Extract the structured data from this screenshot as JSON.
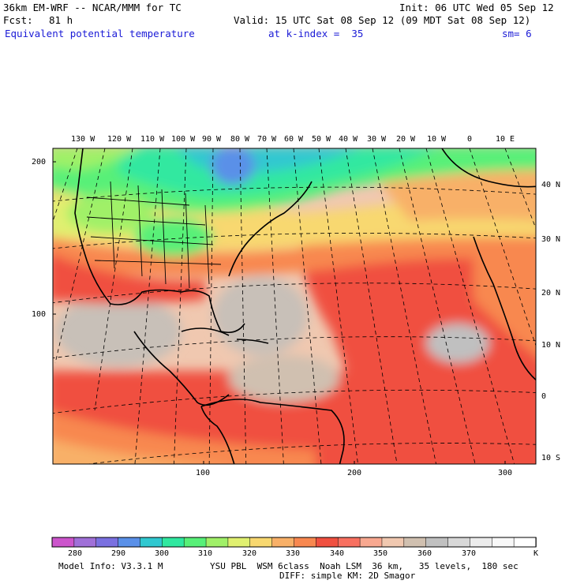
{
  "header": {
    "model": "36km EM-WRF -- NCAR/MMM for TC",
    "init": "Init: 06 UTC Wed 05 Sep 12",
    "fcst_label": "Fcst:",
    "fcst_hours": "81 h",
    "valid": "Valid: 15 UTC Sat 08 Sep 12 (09 MDT Sat 08 Sep 12)",
    "field": "Equivalent potential temperature",
    "level": "at k-index =  35",
    "smoothing": "sm= 6"
  },
  "map": {
    "top_lon_labels": [
      "130 W",
      "120 W",
      "110 W",
      "100 W",
      "90 W",
      "80 W",
      "70 W",
      "60 W",
      "50 W",
      "40 W",
      "30 W",
      "20 W",
      "10 W",
      "0",
      "10 E"
    ],
    "right_lat_labels": [
      "40 N",
      "30 N",
      "20 N",
      "10 N",
      "0",
      "10 S"
    ],
    "left_grid_labels": [
      "200",
      "100"
    ],
    "bottom_grid_labels": [
      "100",
      "200",
      "300"
    ]
  },
  "colorbar": {
    "labels": [
      "280",
      "290",
      "300",
      "310",
      "320",
      "330",
      "340",
      "350",
      "360",
      "370"
    ],
    "unit": "K",
    "colors": [
      "#cc55cc",
      "#a070d8",
      "#7a70e0",
      "#5a90e8",
      "#30c8d0",
      "#30e8a0",
      "#58f078",
      "#a0f068",
      "#e0f070",
      "#f8d870",
      "#f8b068",
      "#f88850",
      "#f05040",
      "#f87060",
      "#f8a890",
      "#f0c8b0",
      "#d0c0b0",
      "#c0c0c0",
      "#d8d8d8",
      "#ececec",
      "#f8f8f8",
      "#ffffff"
    ]
  },
  "footer": {
    "model_info": "Model Info: V3.3.1 M",
    "physics": "YSU PBL  WSM 6class  Noah LSM  36 km,   35 levels,  180 sec",
    "diffusion": "DIFF: simple KM: 2D Smagor"
  }
}
